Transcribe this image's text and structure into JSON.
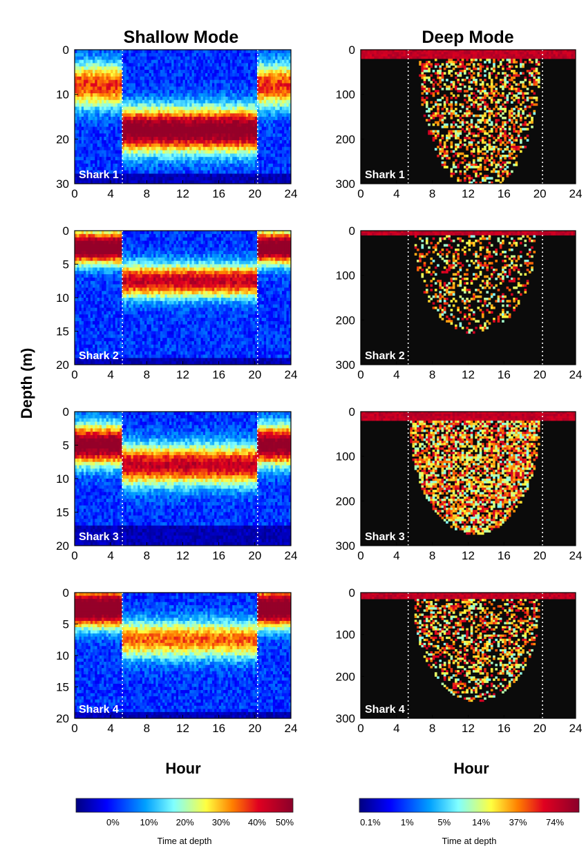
{
  "titles": {
    "left": "Shallow Mode",
    "right": "Deep Mode"
  },
  "labels": {
    "ylabel": "Depth (m)",
    "xlabel_left": "Hour",
    "xlabel_right": "Hour"
  },
  "colorbars": {
    "left": {
      "ticks": [
        "0%",
        "10%",
        "20%",
        "30%",
        "40%",
        "50%"
      ],
      "label": "Time at depth"
    },
    "right": {
      "ticks": [
        "0.1%",
        "1%",
        "5%",
        "14%",
        "37%",
        "74%"
      ],
      "label": "Time at depth"
    }
  },
  "colors": {
    "background": "#0b0b0b",
    "colormap": [
      "#000080",
      "#0000ff",
      "#00a0ff",
      "#80ffff",
      "#ffff40",
      "#ff8000",
      "#e00020",
      "#8a002a"
    ]
  },
  "chart_data": [
    {
      "type": "heatmap",
      "mode": "shallow",
      "label": "Shark 1",
      "xlim": [
        0,
        24
      ],
      "ylim": [
        0,
        30
      ],
      "xticks": [
        "0",
        "4",
        "8",
        "12",
        "16",
        "20",
        "24"
      ],
      "yticks": [
        "0",
        "10",
        "20",
        "30"
      ],
      "sunrise_hour": 5.3,
      "sunset_hour": 20.3,
      "profile": {
        "night_depth": 8,
        "day_depth": 18,
        "peak_night": 0.6,
        "peak_day": 0.85,
        "spread": 5,
        "max_depth": 28
      }
    },
    {
      "type": "heatmap",
      "mode": "deep",
      "label": "Shark 1",
      "xlim": [
        0,
        24
      ],
      "ylim": [
        0,
        300
      ],
      "xticks": [
        "0",
        "4",
        "8",
        "12",
        "16",
        "20",
        "24"
      ],
      "yticks": [
        "0",
        "100",
        "200",
        "300"
      ],
      "sunrise_hour": 5.3,
      "sunset_hour": 20.3,
      "profile": {
        "surface_band": 20,
        "dive_start": 6.5,
        "dive_end": 20,
        "max_dive_depth": 290,
        "dive_intensity": 0.45
      }
    },
    {
      "type": "heatmap",
      "mode": "shallow",
      "label": "Shark 2",
      "xlim": [
        0,
        24
      ],
      "ylim": [
        0,
        20
      ],
      "xticks": [
        "0",
        "4",
        "8",
        "12",
        "16",
        "20",
        "24"
      ],
      "yticks": [
        "0",
        "5",
        "10",
        "15",
        "20"
      ],
      "sunrise_hour": 5.3,
      "sunset_hour": 20.3,
      "profile": {
        "night_depth": 2.5,
        "day_depth": 7.5,
        "peak_night": 0.9,
        "peak_day": 0.7,
        "spread": 2.5,
        "max_depth": 19
      }
    },
    {
      "type": "heatmap",
      "mode": "deep",
      "label": "Shark 2",
      "xlim": [
        0,
        24
      ],
      "ylim": [
        0,
        300
      ],
      "xticks": [
        "0",
        "4",
        "8",
        "12",
        "16",
        "20",
        "24"
      ],
      "yticks": [
        "0",
        "100",
        "200",
        "300"
      ],
      "sunrise_hour": 5.3,
      "sunset_hour": 20.3,
      "profile": {
        "surface_band": 12,
        "dive_start": 6,
        "dive_end": 19.5,
        "max_dive_depth": 200,
        "dive_intensity": 0.3
      }
    },
    {
      "type": "heatmap",
      "mode": "shallow",
      "label": "Shark 3",
      "xlim": [
        0,
        24
      ],
      "ylim": [
        0,
        20
      ],
      "xticks": [
        "0",
        "4",
        "8",
        "12",
        "16",
        "20",
        "24"
      ],
      "yticks": [
        "0",
        "5",
        "10",
        "15",
        "20"
      ],
      "sunrise_hour": 5.3,
      "sunset_hour": 20.3,
      "profile": {
        "night_depth": 5,
        "day_depth": 8,
        "peak_night": 0.85,
        "peak_day": 0.7,
        "spread": 3,
        "max_depth": 17
      }
    },
    {
      "type": "heatmap",
      "mode": "deep",
      "label": "Shark 3",
      "xlim": [
        0,
        24
      ],
      "ylim": [
        0,
        300
      ],
      "xticks": [
        "0",
        "4",
        "8",
        "12",
        "16",
        "20",
        "24"
      ],
      "yticks": [
        "0",
        "100",
        "200",
        "300"
      ],
      "sunrise_hour": 5.3,
      "sunset_hour": 20.3,
      "profile": {
        "surface_band": 18,
        "dive_start": 5.5,
        "dive_end": 20,
        "max_dive_depth": 245,
        "dive_intensity": 0.7
      }
    },
    {
      "type": "heatmap",
      "mode": "shallow",
      "label": "Shark 4",
      "xlim": [
        0,
        24
      ],
      "ylim": [
        0,
        20
      ],
      "xticks": [
        "0",
        "4",
        "8",
        "12",
        "16",
        "20",
        "24"
      ],
      "yticks": [
        "0",
        "5",
        "10",
        "15",
        "20"
      ],
      "sunrise_hour": 5.3,
      "sunset_hour": 20.3,
      "profile": {
        "night_depth": 2.5,
        "day_depth": 7.5,
        "peak_night": 0.95,
        "peak_day": 0.55,
        "spread": 3,
        "max_depth": 19
      }
    },
    {
      "type": "heatmap",
      "mode": "deep",
      "label": "Shark 4",
      "xlim": [
        0,
        24
      ],
      "ylim": [
        0,
        300
      ],
      "xticks": [
        "0",
        "4",
        "8",
        "12",
        "16",
        "20",
        "24"
      ],
      "yticks": [
        "0",
        "100",
        "200",
        "300"
      ],
      "sunrise_hour": 5.3,
      "sunset_hour": 20.3,
      "profile": {
        "surface_band": 15,
        "dive_start": 6,
        "dive_end": 20,
        "max_dive_depth": 230,
        "dive_intensity": 0.45
      }
    }
  ]
}
